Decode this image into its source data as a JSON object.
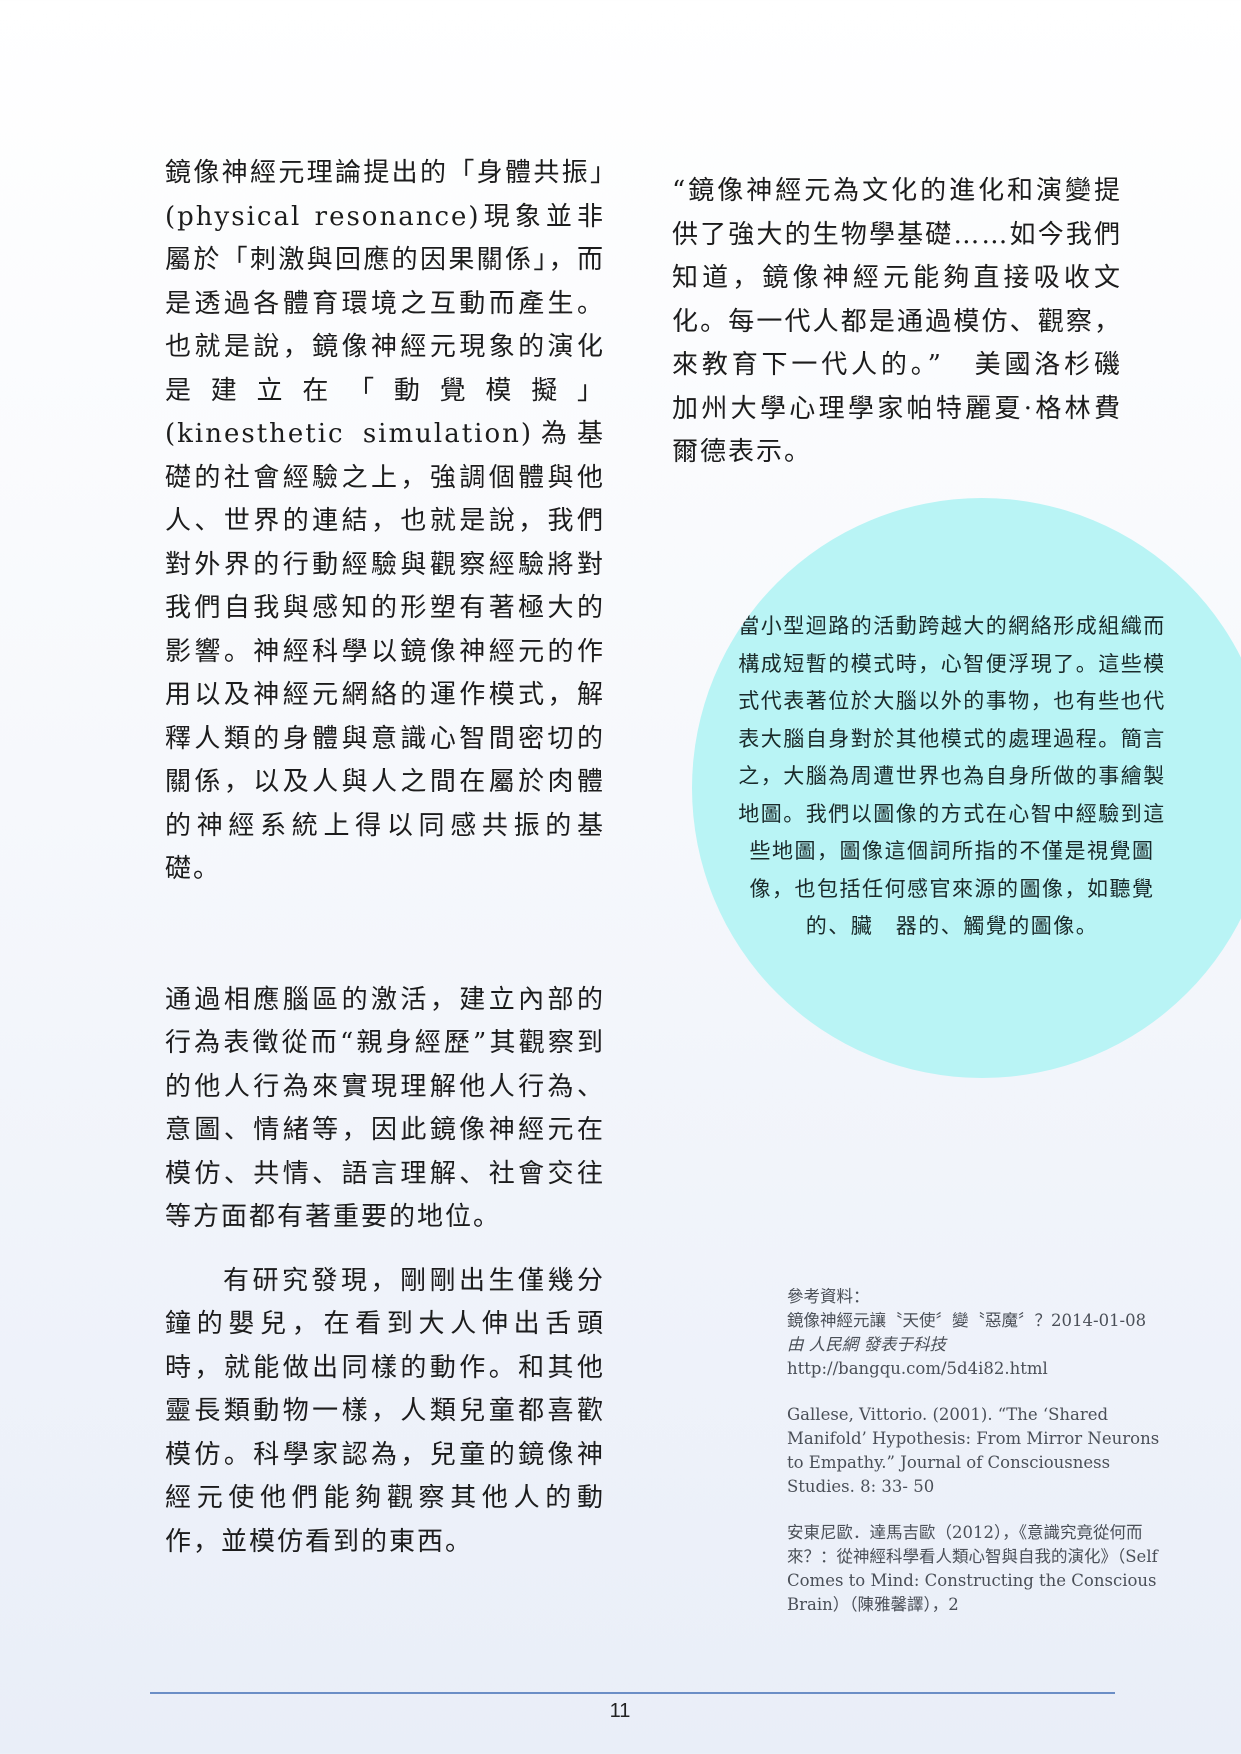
{
  "left_column": {
    "paragraph_1": "鏡像神經元理論提出的「身體共振」(physical resonance)現象並非屬於「刺激與回應的因果關係」，而是透過各體育環境之互動而產生。也就是說，鏡像神經元現象的演化是建立在「動覺模擬」(kinesthetic simulation)為基礎的社會經驗之上，強調個體與他人、世界的連結，也就是說，我們對外界的行動經驗與觀察經驗將對我們自我與感知的形塑有著極大的影響。神經科學以鏡像神經元的作用以及神經元網絡的運作模式，解釋人類的身體與意識心智間密切的關係，以及人與人之間在屬於肉體的神經系統上得以同感共振的基礎。",
    "paragraph_2": "通過相應腦區的激活，建立內部的行為表徵從而“親身經歷”其觀察到的他人行為來實現理解他人行為、意圖、情緒等，因此鏡像神經元在模仿、共情、語言理解、社會交往等方面都有著重要的地位。",
    "paragraph_3": "有研究發現，剛剛出生僅幾分鐘的嬰兒，在看到大人伸出舌頭時，就能做出同樣的動作。和其他靈長類動物一樣，人類兒童都喜歡模仿。科學家認為，兒童的鏡像神經元使他們能夠觀察其他人的動作，並模仿看到的東西。"
  },
  "right_column": {
    "quote": "“鏡像神經元為文化的進化和演變提供了強大的生物學基礎……如今我們知道，鏡像神經元能夠直接吸收文化。每一代人都是通過模仿、觀察，來教育下一代人的。”　美國洛杉磯加州大學心理學家帕特麗夏·格林費爾德表示。",
    "circle_text": "當小型迴路的活動跨越大的網絡形成組織而構成短暫的模式時，心智便浮現了。這些模式代表著位於大腦以外的事物，也有些也代表大腦自身對於其他模式的處理過程。簡言之，大腦為周遭世界也為自身所做的事繪製地圖。我們以圖像的方式在心智中經驗到這些地圖，圖像這個詞所指的不僅是視覺圖　像，也包括任何感官來源的圖像，如聽覺的、臟　器的、觸覺的圖像。"
  },
  "references": {
    "heading": "參考資料：",
    "ref_1_text": "鏡像神經元讓〝天使〞變〝惡魔〞？2014-01-08",
    "ref_1_source": "由 人民網 發表于科技",
    "ref_1_url": "http://bangqu.com/5d4i82.html",
    "ref_2": "Gallese, Vittorio. (2001). “The ‘Shared Manifold’ Hypothesis: From Mirror Neurons to Empathy.” Journal of Consciousness Studies. 8: 33- 50",
    "ref_3": "安東尼歐．達馬吉歐（2012），《意識究竟從何而來？：從神經科學看人類心智與自我的演化》（Self Comes to Mind: Constructing the Conscious Brain）（陳雅馨譯），2"
  },
  "footer": {
    "page_number": "11"
  },
  "colors": {
    "circle": "#b9f4f5",
    "footer_line": "#6b8ec6"
  }
}
